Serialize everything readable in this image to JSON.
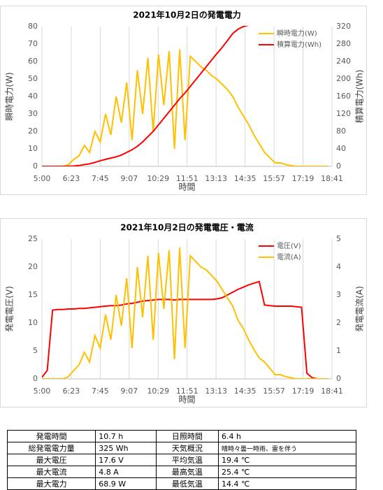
{
  "chart_data": [
    {
      "type": "line",
      "title": "2021年10月2日の発電電力",
      "x_label": "時間",
      "y_label": "瞬時電力(W)",
      "y2_label": "積算電力(Wh)",
      "x": [
        300,
        315,
        330,
        345,
        360,
        375,
        390,
        405,
        420,
        435,
        450,
        465,
        480,
        495,
        510,
        525,
        540,
        555,
        570,
        585,
        600,
        615,
        630,
        645,
        660,
        675,
        690,
        705,
        720,
        735,
        750,
        765,
        780,
        795,
        810,
        825,
        840,
        855,
        870,
        885,
        900,
        915,
        930,
        945,
        960,
        975,
        990,
        1005,
        1020,
        1035,
        1050,
        1065,
        1080,
        1095,
        1110
      ],
      "xlim": [
        300,
        1121
      ],
      "xticks": [
        {
          "value": 300,
          "label": "5:00"
        },
        {
          "value": 383,
          "label": "6:23"
        },
        {
          "value": 465,
          "label": "7:45"
        },
        {
          "value": 547,
          "label": "9:07"
        },
        {
          "value": 629,
          "label": "10:29"
        },
        {
          "value": 711,
          "label": "11:51"
        },
        {
          "value": 793,
          "label": "13:13"
        },
        {
          "value": 875,
          "label": "14:35"
        },
        {
          "value": 957,
          "label": "15:57"
        },
        {
          "value": 1039,
          "label": "17:19"
        },
        {
          "value": 1121,
          "label": "18:41"
        }
      ],
      "ylim": [
        0,
        80
      ],
      "yticks": [
        0,
        10,
        20,
        30,
        40,
        50,
        60,
        70,
        80
      ],
      "y2lim": [
        0,
        320
      ],
      "y2ticks": [
        0,
        40,
        80,
        120,
        160,
        200,
        240,
        280,
        320
      ],
      "grid": true,
      "legend": "upper right",
      "series": [
        {
          "name": "瞬時電力(W)",
          "color": "#FFC000",
          "values": [
            0,
            0,
            0,
            0,
            0,
            1,
            4,
            6,
            12,
            8,
            20,
            14,
            30,
            18,
            40,
            25,
            48,
            15,
            55,
            30,
            62,
            20,
            64,
            35,
            66,
            10,
            67,
            15,
            63,
            60,
            57,
            55,
            52,
            50,
            47,
            44,
            40,
            34,
            29,
            24,
            18,
            13,
            8,
            5,
            2,
            2,
            1,
            0.5,
            0,
            0,
            0,
            0,
            0,
            0,
            0
          ]
        },
        {
          "name": "積算電力(Wh)",
          "color": "#FF0000",
          "axis": "y2",
          "values": [
            0,
            0,
            0,
            0,
            0,
            0.2,
            0.8,
            2,
            4,
            6,
            9,
            13,
            16,
            19,
            22,
            26,
            32,
            38,
            46,
            56,
            68,
            80,
            95,
            110,
            125,
            140,
            155,
            168,
            183,
            198,
            213,
            228,
            243,
            258,
            272,
            288,
            304,
            314,
            320,
            323,
            324,
            325,
            325,
            325,
            325,
            325,
            325,
            325,
            325,
            325,
            325,
            325,
            325,
            325,
            325
          ]
        }
      ]
    },
    {
      "type": "line",
      "title": "2021年10月2日の発電電圧・電流",
      "x_label": "時間",
      "y_label": "発電電圧(V)",
      "y2_label": "発電電流(A)",
      "x": [
        300,
        315,
        330,
        345,
        360,
        375,
        390,
        405,
        420,
        435,
        450,
        465,
        480,
        495,
        510,
        525,
        540,
        555,
        570,
        585,
        600,
        615,
        630,
        645,
        660,
        675,
        690,
        705,
        720,
        735,
        750,
        765,
        780,
        795,
        810,
        825,
        840,
        855,
        870,
        885,
        900,
        915,
        930,
        945,
        960,
        975,
        990,
        1005,
        1020,
        1035,
        1050,
        1065,
        1080,
        1095,
        1110
      ],
      "xlim": [
        300,
        1121
      ],
      "xticks": [
        {
          "value": 300,
          "label": "5:00"
        },
        {
          "value": 383,
          "label": "6:23"
        },
        {
          "value": 465,
          "label": "7:45"
        },
        {
          "value": 547,
          "label": "9:07"
        },
        {
          "value": 629,
          "label": "10:29"
        },
        {
          "value": 711,
          "label": "11:51"
        },
        {
          "value": 793,
          "label": "13:13"
        },
        {
          "value": 875,
          "label": "14:35"
        },
        {
          "value": 957,
          "label": "15:57"
        },
        {
          "value": 1039,
          "label": "17:19"
        },
        {
          "value": 1121,
          "label": "18:41"
        }
      ],
      "ylim": [
        0,
        25
      ],
      "yticks": [
        0,
        5,
        10,
        15,
        20,
        25
      ],
      "y2lim": [
        0,
        5
      ],
      "y2ticks": [
        0,
        1,
        2,
        3,
        4,
        5
      ],
      "grid": true,
      "legend": "upper right",
      "series": [
        {
          "name": "電圧(V)",
          "color": "#FF0000",
          "values": [
            0.3,
            1.5,
            12.3,
            12.4,
            12.4,
            12.5,
            12.5,
            12.6,
            12.6,
            12.7,
            12.8,
            12.9,
            13.0,
            13.1,
            13.1,
            13.2,
            13.4,
            13.5,
            13.7,
            13.9,
            14.0,
            14.1,
            14.2,
            14.2,
            14.2,
            14.1,
            14.2,
            14.2,
            14.2,
            14.2,
            14.2,
            14.2,
            14.2,
            14.3,
            14.5,
            15.0,
            15.5,
            16.0,
            16.4,
            16.8,
            17.1,
            17.4,
            13.2,
            13.1,
            13.0,
            13.0,
            13.0,
            13.0,
            12.9,
            12.8,
            1.0,
            0.2,
            0,
            0,
            0
          ]
        },
        {
          "name": "電流(A)",
          "color": "#FFC000",
          "axis": "y2",
          "values": [
            0,
            0,
            0,
            0,
            0,
            0.08,
            0.3,
            0.5,
            0.95,
            0.6,
            1.55,
            1.1,
            2.3,
            1.4,
            3.0,
            1.9,
            3.6,
            1.1,
            4.0,
            2.2,
            4.4,
            1.4,
            4.5,
            2.5,
            4.6,
            0.7,
            4.7,
            1.1,
            4.4,
            4.2,
            4.0,
            3.9,
            3.7,
            3.5,
            3.2,
            2.9,
            2.6,
            2.1,
            1.8,
            1.4,
            1.05,
            0.75,
            0.6,
            0.38,
            0.15,
            0.15,
            0.08,
            0.04,
            0,
            0,
            0,
            0,
            0,
            0,
            0
          ]
        }
      ]
    }
  ],
  "table": {
    "rows": [
      [
        "発電時間",
        "10.7 h",
        "日照時間",
        "6.4 h"
      ],
      [
        "総発電電力量",
        "325 Wh",
        "天気概況",
        "晴時々曇一時雨、雷を伴う"
      ],
      [
        "最大電圧",
        "17.6 V",
        "平均気温",
        "19.4 ℃"
      ],
      [
        "最大電流",
        "4.8 A",
        "最高気温",
        "25.4 ℃"
      ],
      [
        "最大電力",
        "68.9 W",
        "最低気温",
        "14.4 ℃"
      ]
    ]
  }
}
